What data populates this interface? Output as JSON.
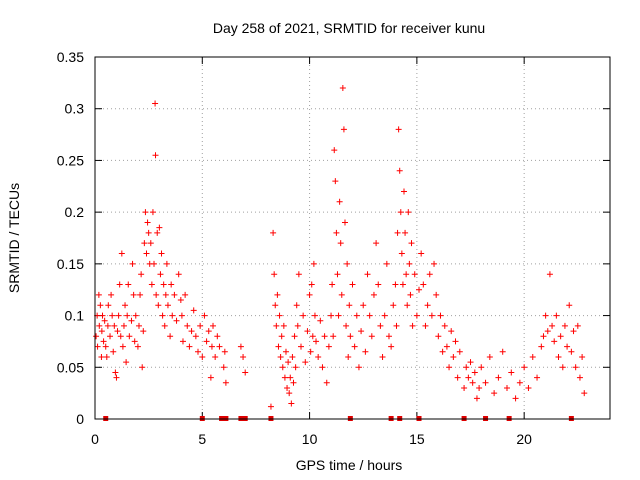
{
  "chart_data": {
    "type": "scatter",
    "title": "Day 258 of 2021, SRMTID for receiver kunu",
    "xlabel": "GPS time / hours",
    "ylabel": "SRMTID / TECUs",
    "xlim": [
      0,
      24
    ],
    "ylim": [
      0,
      0.35
    ],
    "x_ticks": [
      0,
      5,
      10,
      15,
      20
    ],
    "x_tick_labels": [
      "0",
      "5",
      "10",
      "15",
      "20"
    ],
    "y_ticks": [
      0,
      0.05,
      0.1,
      0.15,
      0.2,
      0.25,
      0.3,
      0.35
    ],
    "y_tick_labels": [
      "0",
      "0.05",
      "0.1",
      "0.15",
      "0.2",
      "0.25",
      "0.3",
      "0.35"
    ],
    "grid": true,
    "marker": "+",
    "series_color": "#ff0000",
    "gap_marker_color": "#dd0000",
    "points": [
      [
        0.05,
        0.08
      ],
      [
        0.1,
        0.1
      ],
      [
        0.12,
        0.07
      ],
      [
        0.18,
        0.12
      ],
      [
        0.2,
        0.09
      ],
      [
        0.25,
        0.11
      ],
      [
        0.3,
        0.06
      ],
      [
        0.32,
        0.085
      ],
      [
        0.35,
        0.1
      ],
      [
        0.4,
        0.075
      ],
      [
        0.45,
        0.095
      ],
      [
        0.5,
        0.07
      ],
      [
        0.55,
        0.06
      ],
      [
        0.6,
        0.09
      ],
      [
        0.62,
        0.11
      ],
      [
        0.7,
        0.08
      ],
      [
        0.75,
        0.12
      ],
      [
        0.8,
        0.1
      ],
      [
        0.85,
        0.065
      ],
      [
        0.9,
        0.09
      ],
      [
        0.95,
        0.045
      ],
      [
        1.0,
        0.04
      ],
      [
        1.05,
        0.085
      ],
      [
        1.1,
        0.1
      ],
      [
        1.15,
        0.13
      ],
      [
        1.2,
        0.08
      ],
      [
        1.25,
        0.16
      ],
      [
        1.3,
        0.07
      ],
      [
        1.35,
        0.09
      ],
      [
        1.4,
        0.11
      ],
      [
        1.45,
        0.055
      ],
      [
        1.5,
        0.1
      ],
      [
        1.55,
        0.13
      ],
      [
        1.6,
        0.08
      ],
      [
        1.7,
        0.095
      ],
      [
        1.75,
        0.15
      ],
      [
        1.8,
        0.12
      ],
      [
        1.85,
        0.075
      ],
      [
        1.9,
        0.1
      ],
      [
        2.0,
        0.07
      ],
      [
        2.05,
        0.09
      ],
      [
        2.1,
        0.12
      ],
      [
        2.15,
        0.14
      ],
      [
        2.2,
        0.05
      ],
      [
        2.25,
        0.085
      ],
      [
        2.3,
        0.17
      ],
      [
        2.35,
        0.2
      ],
      [
        2.4,
        0.16
      ],
      [
        2.45,
        0.19
      ],
      [
        2.5,
        0.18
      ],
      [
        2.55,
        0.15
      ],
      [
        2.6,
        0.17
      ],
      [
        2.65,
        0.13
      ],
      [
        2.7,
        0.2
      ],
      [
        2.75,
        0.15
      ],
      [
        2.8,
        0.305
      ],
      [
        2.82,
        0.255
      ],
      [
        2.85,
        0.12
      ],
      [
        2.9,
        0.18
      ],
      [
        2.95,
        0.11
      ],
      [
        3.0,
        0.185
      ],
      [
        3.05,
        0.14
      ],
      [
        3.1,
        0.16
      ],
      [
        3.15,
        0.1
      ],
      [
        3.2,
        0.13
      ],
      [
        3.25,
        0.09
      ],
      [
        3.3,
        0.12
      ],
      [
        3.35,
        0.15
      ],
      [
        3.4,
        0.11
      ],
      [
        3.5,
        0.08
      ],
      [
        3.55,
        0.13
      ],
      [
        3.6,
        0.1
      ],
      [
        3.7,
        0.12
      ],
      [
        3.8,
        0.095
      ],
      [
        3.9,
        0.14
      ],
      [
        4.0,
        0.115
      ],
      [
        4.05,
        0.1
      ],
      [
        4.1,
        0.075
      ],
      [
        4.2,
        0.12
      ],
      [
        4.3,
        0.09
      ],
      [
        4.4,
        0.07
      ],
      [
        4.5,
        0.085
      ],
      [
        4.6,
        0.105
      ],
      [
        4.7,
        0.08
      ],
      [
        4.8,
        0.065
      ],
      [
        4.9,
        0.09
      ],
      [
        5.0,
        0.06
      ],
      [
        5.1,
        0.1
      ],
      [
        5.2,
        0.075
      ],
      [
        5.3,
        0.085
      ],
      [
        5.4,
        0.04
      ],
      [
        5.45,
        0.07
      ],
      [
        5.5,
        0.09
      ],
      [
        5.6,
        0.06
      ],
      [
        5.7,
        0.08
      ],
      [
        5.8,
        0.07
      ],
      [
        6.0,
        0.05
      ],
      [
        6.05,
        0.065
      ],
      [
        6.1,
        0.035
      ],
      [
        6.8,
        0.07
      ],
      [
        6.9,
        0.06
      ],
      [
        7.0,
        0.045
      ],
      [
        8.2,
        0.012
      ],
      [
        8.3,
        0.18
      ],
      [
        8.35,
        0.14
      ],
      [
        8.4,
        0.11
      ],
      [
        8.45,
        0.09
      ],
      [
        8.5,
        0.12
      ],
      [
        8.55,
        0.07
      ],
      [
        8.6,
        0.1
      ],
      [
        8.65,
        0.06
      ],
      [
        8.7,
        0.08
      ],
      [
        8.75,
        0.05
      ],
      [
        8.8,
        0.09
      ],
      [
        8.85,
        0.04
      ],
      [
        8.9,
        0.065
      ],
      [
        8.95,
        0.03
      ],
      [
        9.0,
        0.055
      ],
      [
        9.05,
        0.025
      ],
      [
        9.1,
        0.04
      ],
      [
        9.15,
        0.015
      ],
      [
        9.2,
        0.06
      ],
      [
        9.25,
        0.035
      ],
      [
        9.3,
        0.08
      ],
      [
        9.35,
        0.05
      ],
      [
        9.4,
        0.11
      ],
      [
        9.45,
        0.09
      ],
      [
        9.5,
        0.14
      ],
      [
        9.6,
        0.07
      ],
      [
        9.7,
        0.1
      ],
      [
        9.8,
        0.055
      ],
      [
        9.9,
        0.085
      ],
      [
        10.0,
        0.12
      ],
      [
        10.05,
        0.065
      ],
      [
        10.1,
        0.13
      ],
      [
        10.15,
        0.08
      ],
      [
        10.2,
        0.15
      ],
      [
        10.25,
        0.1
      ],
      [
        10.3,
        0.075
      ],
      [
        10.4,
        0.06
      ],
      [
        10.5,
        0.095
      ],
      [
        10.6,
        0.05
      ],
      [
        10.7,
        0.08
      ],
      [
        10.8,
        0.035
      ],
      [
        10.9,
        0.07
      ],
      [
        11.0,
        0.1
      ],
      [
        11.05,
        0.13
      ],
      [
        11.1,
        0.08
      ],
      [
        11.15,
        0.26
      ],
      [
        11.2,
        0.23
      ],
      [
        11.25,
        0.18
      ],
      [
        11.3,
        0.14
      ],
      [
        11.35,
        0.1
      ],
      [
        11.4,
        0.21
      ],
      [
        11.45,
        0.17
      ],
      [
        11.5,
        0.12
      ],
      [
        11.55,
        0.32
      ],
      [
        11.6,
        0.28
      ],
      [
        11.65,
        0.19
      ],
      [
        11.7,
        0.09
      ],
      [
        11.75,
        0.15
      ],
      [
        11.8,
        0.06
      ],
      [
        11.85,
        0.11
      ],
      [
        11.9,
        0.08
      ],
      [
        12.0,
        0.13
      ],
      [
        12.1,
        0.07
      ],
      [
        12.2,
        0.1
      ],
      [
        12.3,
        0.05
      ],
      [
        12.4,
        0.085
      ],
      [
        12.5,
        0.11
      ],
      [
        12.6,
        0.065
      ],
      [
        12.7,
        0.14
      ],
      [
        12.8,
        0.1
      ],
      [
        12.9,
        0.08
      ],
      [
        13.0,
        0.12
      ],
      [
        13.1,
        0.17
      ],
      [
        13.2,
        0.13
      ],
      [
        13.3,
        0.09
      ],
      [
        13.4,
        0.06
      ],
      [
        13.5,
        0.1
      ],
      [
        13.6,
        0.15
      ],
      [
        13.7,
        0.08
      ],
      [
        13.8,
        0.07
      ],
      [
        13.9,
        0.11
      ],
      [
        14.0,
        0.13
      ],
      [
        14.05,
        0.09
      ],
      [
        14.1,
        0.18
      ],
      [
        14.15,
        0.28
      ],
      [
        14.2,
        0.24
      ],
      [
        14.25,
        0.2
      ],
      [
        14.3,
        0.16
      ],
      [
        14.35,
        0.13
      ],
      [
        14.4,
        0.22
      ],
      [
        14.45,
        0.18
      ],
      [
        14.5,
        0.14
      ],
      [
        14.55,
        0.11
      ],
      [
        14.6,
        0.2
      ],
      [
        14.65,
        0.15
      ],
      [
        14.7,
        0.12
      ],
      [
        14.75,
        0.17
      ],
      [
        14.8,
        0.09
      ],
      [
        14.9,
        0.14
      ],
      [
        15.0,
        0.1
      ],
      [
        15.1,
        0.125
      ],
      [
        15.2,
        0.16
      ],
      [
        15.3,
        0.13
      ],
      [
        15.4,
        0.09
      ],
      [
        15.5,
        0.11
      ],
      [
        15.6,
        0.14
      ],
      [
        15.7,
        0.1
      ],
      [
        15.8,
        0.15
      ],
      [
        15.9,
        0.12
      ],
      [
        16.0,
        0.08
      ],
      [
        16.1,
        0.1
      ],
      [
        16.2,
        0.065
      ],
      [
        16.3,
        0.09
      ],
      [
        16.4,
        0.07
      ],
      [
        16.5,
        0.05
      ],
      [
        16.6,
        0.085
      ],
      [
        16.7,
        0.06
      ],
      [
        16.8,
        0.075
      ],
      [
        16.9,
        0.04
      ],
      [
        17.0,
        0.065
      ],
      [
        17.2,
        0.03
      ],
      [
        17.3,
        0.05
      ],
      [
        17.4,
        0.04
      ],
      [
        17.5,
        0.055
      ],
      [
        17.6,
        0.035
      ],
      [
        17.7,
        0.045
      ],
      [
        17.8,
        0.02
      ],
      [
        17.9,
        0.03
      ],
      [
        18.0,
        0.05
      ],
      [
        18.2,
        0.035
      ],
      [
        18.4,
        0.06
      ],
      [
        18.6,
        0.025
      ],
      [
        18.8,
        0.04
      ],
      [
        19.0,
        0.065
      ],
      [
        19.2,
        0.03
      ],
      [
        19.4,
        0.045
      ],
      [
        19.6,
        0.02
      ],
      [
        19.8,
        0.035
      ],
      [
        20.0,
        0.05
      ],
      [
        20.2,
        0.03
      ],
      [
        20.4,
        0.06
      ],
      [
        20.6,
        0.04
      ],
      [
        20.8,
        0.07
      ],
      [
        20.9,
        0.08
      ],
      [
        21.0,
        0.1
      ],
      [
        21.1,
        0.085
      ],
      [
        21.2,
        0.14
      ],
      [
        21.3,
        0.09
      ],
      [
        21.4,
        0.075
      ],
      [
        21.5,
        0.1
      ],
      [
        21.6,
        0.06
      ],
      [
        21.7,
        0.08
      ],
      [
        21.8,
        0.05
      ],
      [
        21.9,
        0.09
      ],
      [
        22.0,
        0.07
      ],
      [
        22.1,
        0.11
      ],
      [
        22.2,
        0.065
      ],
      [
        22.3,
        0.085
      ],
      [
        22.4,
        0.05
      ],
      [
        22.5,
        0.09
      ],
      [
        22.6,
        0.04
      ],
      [
        22.7,
        0.06
      ],
      [
        22.8,
        0.025
      ]
    ],
    "gap_markers_x": [
      0.5,
      5.0,
      5.9,
      6.1,
      6.8,
      7.0,
      8.2,
      11.9,
      13.8,
      14.2,
      15.1,
      17.2,
      18.2,
      19.3,
      22.2
    ]
  }
}
